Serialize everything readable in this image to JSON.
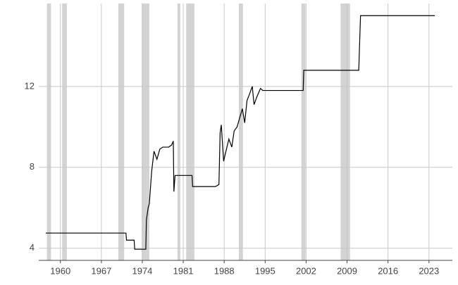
{
  "chart_data": {
    "type": "line",
    "x": [
      1957.5,
      1971.2,
      1971.3,
      1972.6,
      1972.7,
      1974.6,
      1974.7,
      1975.0,
      1975.2,
      1975.6,
      1976.0,
      1976.5,
      1977.0,
      1977.5,
      1978.5,
      1979.0,
      1979.3,
      1979.4,
      1979.6,
      1982.5,
      1982.6,
      1986.5,
      1987.1,
      1987.3,
      1987.5,
      1987.9,
      1988.3,
      1988.8,
      1989.3,
      1989.7,
      1990.2,
      1990.7,
      1991.1,
      1991.5,
      1991.9,
      1992.3,
      1992.8,
      1993.1,
      1993.6,
      1994.2,
      1994.6,
      2001.5,
      2001.6,
      2011.0,
      2011.3,
      2024.0
    ],
    "series": [
      {
        "name": "value",
        "color": "#000000",
        "values": [
          4.75,
          4.75,
          4.4,
          4.4,
          3.95,
          3.95,
          5.4,
          6.0,
          6.2,
          7.8,
          8.8,
          8.4,
          8.9,
          9.0,
          9.0,
          9.1,
          9.3,
          6.8,
          7.6,
          7.6,
          7.05,
          7.05,
          7.15,
          9.7,
          10.1,
          8.3,
          8.8,
          9.4,
          9.0,
          9.8,
          10.0,
          10.5,
          10.9,
          10.2,
          11.3,
          11.6,
          12.0,
          11.1,
          11.5,
          11.9,
          11.8,
          11.8,
          12.8,
          12.8,
          15.5,
          15.5
        ]
      }
    ],
    "recessions": [
      [
        1957.7,
        1958.4
      ],
      [
        1960.3,
        1961.1
      ],
      [
        1969.9,
        1970.9
      ],
      [
        1973.9,
        1975.2
      ],
      [
        1980.0,
        1980.5
      ],
      [
        1981.5,
        1982.9
      ],
      [
        1990.5,
        1991.2
      ],
      [
        2001.2,
        2001.9
      ],
      [
        2007.9,
        2009.5
      ]
    ],
    "recession_color": "#d3d3d3",
    "xlim": [
      1956.3,
      2027.0
    ],
    "xticks": [
      1960,
      1967,
      1974,
      1981,
      1988,
      1995,
      2002,
      2009,
      2016,
      2023
    ],
    "ylim": [
      3.4,
      16.1
    ],
    "yticks": [
      4,
      8,
      12
    ],
    "grid": true
  }
}
